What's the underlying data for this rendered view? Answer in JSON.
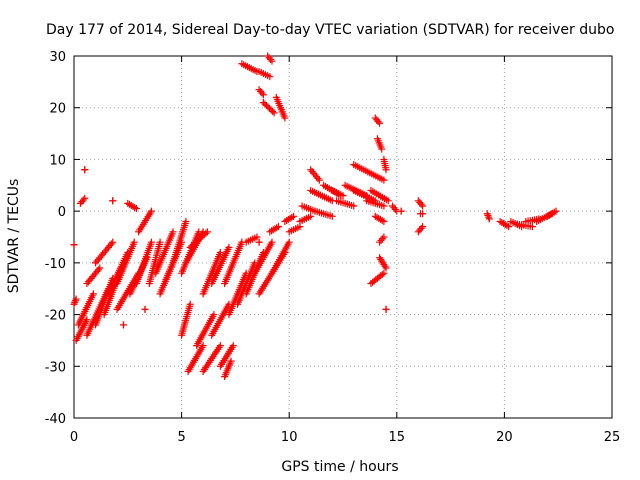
{
  "chart_data": {
    "type": "scatter",
    "title": "Day 177 of 2014, Sidereal Day-to-day VTEC variation (SDTVAR) for receiver dubo",
    "xlabel": "GPS time / hours",
    "ylabel": "SDTVAR / TECUs",
    "xlim": [
      0,
      25
    ],
    "ylim": [
      -40,
      30
    ],
    "xticks": [
      "0",
      "5",
      "10",
      "15",
      "20",
      "25"
    ],
    "yticks": [
      "-40",
      "-30",
      "-20",
      "-10",
      "0",
      "10",
      "20",
      "30"
    ],
    "grid": true,
    "marker": "+",
    "color": "#ff0000",
    "segments": [
      [
        0.0,
        -6.5,
        0.0,
        -6.5
      ],
      [
        0.0,
        -18,
        0.1,
        -17
      ],
      [
        0.1,
        -25,
        0.6,
        -21
      ],
      [
        0.2,
        -22,
        0.9,
        -16
      ],
      [
        0.3,
        1.5,
        0.5,
        2.5
      ],
      [
        0.5,
        8,
        0.5,
        8
      ],
      [
        0.6,
        -14,
        1.2,
        -11
      ],
      [
        0.6,
        -24,
        1.6,
        -15
      ],
      [
        1.0,
        -22,
        1.8,
        -13
      ],
      [
        1.4,
        -20,
        2.2,
        -11
      ],
      [
        1.0,
        -10,
        1.8,
        -6
      ],
      [
        1.6,
        -16,
        2.5,
        -8
      ],
      [
        2.0,
        -14,
        2.8,
        -6
      ],
      [
        2.0,
        -19,
        3.0,
        -12
      ],
      [
        2.6,
        -16,
        3.4,
        -9
      ],
      [
        2.3,
        -22,
        2.3,
        -22
      ],
      [
        2.5,
        1.5,
        2.9,
        0.5
      ],
      [
        2.9,
        -14,
        3.6,
        -6
      ],
      [
        3.0,
        -4,
        3.6,
        0
      ],
      [
        3.3,
        -19,
        3.3,
        -19
      ],
      [
        3.5,
        -14,
        4.0,
        -6
      ],
      [
        3.8,
        -12,
        4.6,
        -4
      ],
      [
        1.8,
        2,
        1.8,
        2
      ],
      [
        4.0,
        -16,
        4.8,
        -8
      ],
      [
        4.2,
        -14,
        5.0,
        -6
      ],
      [
        4.6,
        -10,
        5.2,
        -2
      ],
      [
        5.0,
        -12,
        5.8,
        -4
      ],
      [
        5.2,
        -10,
        6.0,
        -4
      ],
      [
        5.4,
        -7,
        6.2,
        -4
      ],
      [
        5.0,
        -24,
        5.4,
        -18
      ],
      [
        5.3,
        -31,
        6.0,
        -26
      ],
      [
        5.7,
        -26,
        6.5,
        -20
      ],
      [
        6.0,
        -31,
        6.8,
        -26
      ],
      [
        6.4,
        -24,
        7.2,
        -18
      ],
      [
        6.8,
        -30,
        7.4,
        -26
      ],
      [
        7.0,
        -32,
        7.3,
        -29
      ],
      [
        6.0,
        -16,
        6.8,
        -8
      ],
      [
        6.4,
        -14,
        7.2,
        -7
      ],
      [
        7.0,
        -14,
        7.8,
        -6
      ],
      [
        7.2,
        -20,
        8.0,
        -12
      ],
      [
        7.6,
        -18,
        8.4,
        -10
      ],
      [
        8.0,
        -16,
        8.8,
        -8
      ],
      [
        8.4,
        -12,
        9.2,
        -6
      ],
      [
        8.6,
        -16,
        9.8,
        -8
      ],
      [
        9.2,
        -12,
        10.0,
        -6
      ],
      [
        7.8,
        28.5,
        8.5,
        27
      ],
      [
        8.6,
        27,
        9.1,
        26
      ],
      [
        9.0,
        30,
        9.2,
        29
      ],
      [
        8.8,
        21,
        9.3,
        19
      ],
      [
        9.4,
        22,
        9.8,
        18
      ],
      [
        8.6,
        23.5,
        8.8,
        22.5
      ],
      [
        8.0,
        -6,
        8.5,
        -5
      ],
      [
        8.6,
        -6,
        8.6,
        -6
      ],
      [
        9.1,
        -4,
        9.5,
        -3
      ],
      [
        9.8,
        -2,
        10.2,
        -1
      ],
      [
        10.0,
        -4,
        10.5,
        -3
      ],
      [
        10.5,
        -2,
        11.0,
        -1
      ],
      [
        10.6,
        1,
        11.2,
        0
      ],
      [
        11.0,
        8,
        11.4,
        6
      ],
      [
        11.0,
        4,
        12.0,
        2
      ],
      [
        11.2,
        0,
        12.0,
        -1
      ],
      [
        11.6,
        5,
        12.4,
        3
      ],
      [
        12.0,
        4,
        12.5,
        3
      ],
      [
        12.2,
        2,
        13.0,
        1
      ],
      [
        12.6,
        5,
        13.6,
        3
      ],
      [
        13.0,
        4,
        14.0,
        2
      ],
      [
        13.0,
        9,
        14.4,
        6
      ],
      [
        13.6,
        2,
        14.4,
        1
      ],
      [
        13.8,
        4,
        14.6,
        2
      ],
      [
        14.0,
        18,
        14.2,
        17
      ],
      [
        14.1,
        14,
        14.3,
        12
      ],
      [
        14.4,
        10,
        14.5,
        8
      ],
      [
        14.0,
        -1,
        14.4,
        -2
      ],
      [
        14.2,
        -6,
        14.4,
        -5
      ],
      [
        14.2,
        -9,
        14.5,
        -11
      ],
      [
        13.8,
        -14,
        14.4,
        -12
      ],
      [
        14.5,
        -19,
        14.5,
        -19
      ],
      [
        14.8,
        1,
        15.0,
        0
      ],
      [
        15.2,
        0,
        15.2,
        0
      ],
      [
        16.0,
        2,
        16.2,
        1
      ],
      [
        16.1,
        -0.5,
        16.2,
        -0.5
      ],
      [
        16.0,
        -4,
        16.2,
        -3
      ],
      [
        19.2,
        -0.5,
        19.3,
        -1.5
      ],
      [
        19.8,
        -2,
        20.2,
        -3
      ],
      [
        20.3,
        -2,
        20.8,
        -3
      ],
      [
        20.6,
        -2.5,
        21.3,
        -3
      ],
      [
        21.0,
        -2,
        21.6,
        -1.5
      ],
      [
        21.5,
        -2,
        22.2,
        -0.5
      ],
      [
        22.0,
        -1,
        22.4,
        0
      ]
    ]
  }
}
